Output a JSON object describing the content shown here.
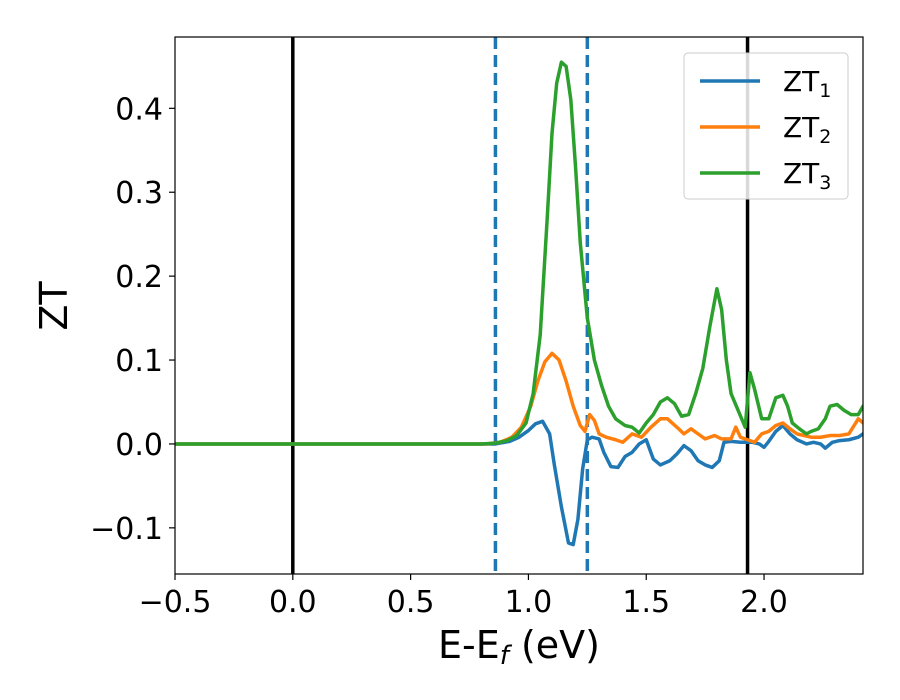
{
  "chart_data": {
    "type": "line",
    "xlabel": {
      "main": "E-E",
      "sub": "f",
      "tail": " (eV)"
    },
    "ylabel": "ZT",
    "xlim": [
      -0.5,
      2.42
    ],
    "ylim": [
      -0.155,
      0.485
    ],
    "x_ticks": [
      -0.5,
      0.0,
      0.5,
      1.0,
      1.5,
      2.0
    ],
    "x_tick_labels": [
      "−0.5",
      "0.0",
      "0.5",
      "1.0",
      "1.5",
      "2.0"
    ],
    "y_ticks": [
      -0.1,
      0.0,
      0.1,
      0.2,
      0.3,
      0.4
    ],
    "y_tick_labels": [
      "−0.1",
      "0.0",
      "0.1",
      "0.2",
      "0.3",
      "0.4"
    ],
    "grid": false,
    "legend_position": "top-right",
    "vertical_lines": [
      {
        "x": 0.0,
        "style": "solid",
        "color": "#000000"
      },
      {
        "x": 1.93,
        "style": "solid",
        "color": "#000000"
      },
      {
        "x": 0.86,
        "style": "dashed",
        "color": "#1f77b4"
      },
      {
        "x": 1.25,
        "style": "dashed",
        "color": "#1f77b4"
      }
    ],
    "series": [
      {
        "name": "ZT",
        "name_sub": "1",
        "color": "#1f77b4",
        "points": [
          [
            -0.5,
            0
          ],
          [
            0.8,
            0
          ],
          [
            0.86,
            0.0
          ],
          [
            0.92,
            0.003
          ],
          [
            0.96,
            0.008
          ],
          [
            1.0,
            0.016
          ],
          [
            1.03,
            0.024
          ],
          [
            1.06,
            0.027
          ],
          [
            1.09,
            0.012
          ],
          [
            1.11,
            -0.025
          ],
          [
            1.14,
            -0.075
          ],
          [
            1.17,
            -0.118
          ],
          [
            1.19,
            -0.12
          ],
          [
            1.21,
            -0.09
          ],
          [
            1.23,
            -0.03
          ],
          [
            1.25,
            0.005
          ],
          [
            1.27,
            0.008
          ],
          [
            1.3,
            0.006
          ],
          [
            1.32,
            -0.01
          ],
          [
            1.35,
            -0.027
          ],
          [
            1.38,
            -0.028
          ],
          [
            1.41,
            -0.015
          ],
          [
            1.44,
            -0.01
          ],
          [
            1.47,
            0.0
          ],
          [
            1.5,
            0.005
          ],
          [
            1.53,
            -0.018
          ],
          [
            1.56,
            -0.025
          ],
          [
            1.6,
            -0.02
          ],
          [
            1.63,
            -0.012
          ],
          [
            1.66,
            -0.002
          ],
          [
            1.69,
            -0.008
          ],
          [
            1.72,
            -0.02
          ],
          [
            1.75,
            -0.025
          ],
          [
            1.78,
            -0.028
          ],
          [
            1.81,
            -0.02
          ],
          [
            1.83,
            0.002
          ],
          [
            1.86,
            0.003
          ],
          [
            1.9,
            0.002
          ],
          [
            1.95,
            0.002
          ],
          [
            1.98,
            0.0
          ],
          [
            2.0,
            -0.004
          ],
          [
            2.02,
            0.003
          ],
          [
            2.05,
            0.015
          ],
          [
            2.08,
            0.022
          ],
          [
            2.11,
            0.012
          ],
          [
            2.14,
            0.005
          ],
          [
            2.18,
            0.0
          ],
          [
            2.21,
            0.002
          ],
          [
            2.24,
            0.0
          ],
          [
            2.26,
            -0.005
          ],
          [
            2.29,
            0.002
          ],
          [
            2.32,
            0.004
          ],
          [
            2.36,
            0.005
          ],
          [
            2.4,
            0.008
          ],
          [
            2.42,
            0.012
          ]
        ]
      },
      {
        "name": "ZT",
        "name_sub": "2",
        "color": "#ff7f0e",
        "points": [
          [
            -0.5,
            0
          ],
          [
            0.82,
            0
          ],
          [
            0.88,
            0.002
          ],
          [
            0.93,
            0.008
          ],
          [
            0.97,
            0.02
          ],
          [
            1.01,
            0.045
          ],
          [
            1.04,
            0.075
          ],
          [
            1.07,
            0.098
          ],
          [
            1.1,
            0.108
          ],
          [
            1.13,
            0.1
          ],
          [
            1.16,
            0.075
          ],
          [
            1.19,
            0.045
          ],
          [
            1.22,
            0.022
          ],
          [
            1.24,
            0.015
          ],
          [
            1.26,
            0.035
          ],
          [
            1.28,
            0.028
          ],
          [
            1.3,
            0.012
          ],
          [
            1.33,
            0.008
          ],
          [
            1.37,
            0.005
          ],
          [
            1.4,
            0.002
          ],
          [
            1.44,
            0.012
          ],
          [
            1.48,
            0.008
          ],
          [
            1.52,
            0.02
          ],
          [
            1.56,
            0.03
          ],
          [
            1.59,
            0.03
          ],
          [
            1.63,
            0.02
          ],
          [
            1.66,
            0.012
          ],
          [
            1.69,
            0.018
          ],
          [
            1.72,
            0.012
          ],
          [
            1.75,
            0.006
          ],
          [
            1.79,
            0.01
          ],
          [
            1.82,
            0.006
          ],
          [
            1.86,
            0.006
          ],
          [
            1.88,
            0.02
          ],
          [
            1.9,
            0.008
          ],
          [
            1.93,
            0.005
          ],
          [
            1.96,
            0.002
          ],
          [
            1.99,
            0.012
          ],
          [
            2.02,
            0.015
          ],
          [
            2.05,
            0.022
          ],
          [
            2.08,
            0.025
          ],
          [
            2.11,
            0.018
          ],
          [
            2.14,
            0.012
          ],
          [
            2.17,
            0.01
          ],
          [
            2.2,
            0.008
          ],
          [
            2.24,
            0.008
          ],
          [
            2.28,
            0.01
          ],
          [
            2.32,
            0.01
          ],
          [
            2.36,
            0.012
          ],
          [
            2.4,
            0.03
          ],
          [
            2.42,
            0.025
          ]
        ]
      },
      {
        "name": "ZT",
        "name_sub": "3",
        "color": "#2ca02c",
        "points": [
          [
            -0.5,
            0
          ],
          [
            0.8,
            0
          ],
          [
            0.86,
            0.001
          ],
          [
            0.91,
            0.004
          ],
          [
            0.95,
            0.01
          ],
          [
            0.99,
            0.025
          ],
          [
            1.02,
            0.06
          ],
          [
            1.05,
            0.13
          ],
          [
            1.08,
            0.27
          ],
          [
            1.1,
            0.37
          ],
          [
            1.12,
            0.43
          ],
          [
            1.14,
            0.455
          ],
          [
            1.16,
            0.45
          ],
          [
            1.18,
            0.41
          ],
          [
            1.2,
            0.33
          ],
          [
            1.22,
            0.24
          ],
          [
            1.25,
            0.15
          ],
          [
            1.28,
            0.1
          ],
          [
            1.31,
            0.07
          ],
          [
            1.34,
            0.045
          ],
          [
            1.37,
            0.03
          ],
          [
            1.41,
            0.022
          ],
          [
            1.44,
            0.02
          ],
          [
            1.47,
            0.013
          ],
          [
            1.5,
            0.025
          ],
          [
            1.53,
            0.035
          ],
          [
            1.56,
            0.05
          ],
          [
            1.59,
            0.055
          ],
          [
            1.62,
            0.048
          ],
          [
            1.65,
            0.033
          ],
          [
            1.68,
            0.035
          ],
          [
            1.71,
            0.06
          ],
          [
            1.74,
            0.09
          ],
          [
            1.77,
            0.14
          ],
          [
            1.8,
            0.185
          ],
          [
            1.82,
            0.16
          ],
          [
            1.84,
            0.1
          ],
          [
            1.86,
            0.06
          ],
          [
            1.89,
            0.04
          ],
          [
            1.92,
            0.02
          ],
          [
            1.94,
            0.085
          ],
          [
            1.96,
            0.065
          ],
          [
            1.99,
            0.03
          ],
          [
            2.02,
            0.03
          ],
          [
            2.05,
            0.055
          ],
          [
            2.08,
            0.058
          ],
          [
            2.1,
            0.045
          ],
          [
            2.12,
            0.025
          ],
          [
            2.15,
            0.018
          ],
          [
            2.18,
            0.012
          ],
          [
            2.2,
            0.015
          ],
          [
            2.23,
            0.018
          ],
          [
            2.26,
            0.03
          ],
          [
            2.28,
            0.045
          ],
          [
            2.31,
            0.047
          ],
          [
            2.34,
            0.04
          ],
          [
            2.37,
            0.035
          ],
          [
            2.4,
            0.035
          ],
          [
            2.42,
            0.045
          ]
        ]
      }
    ]
  }
}
